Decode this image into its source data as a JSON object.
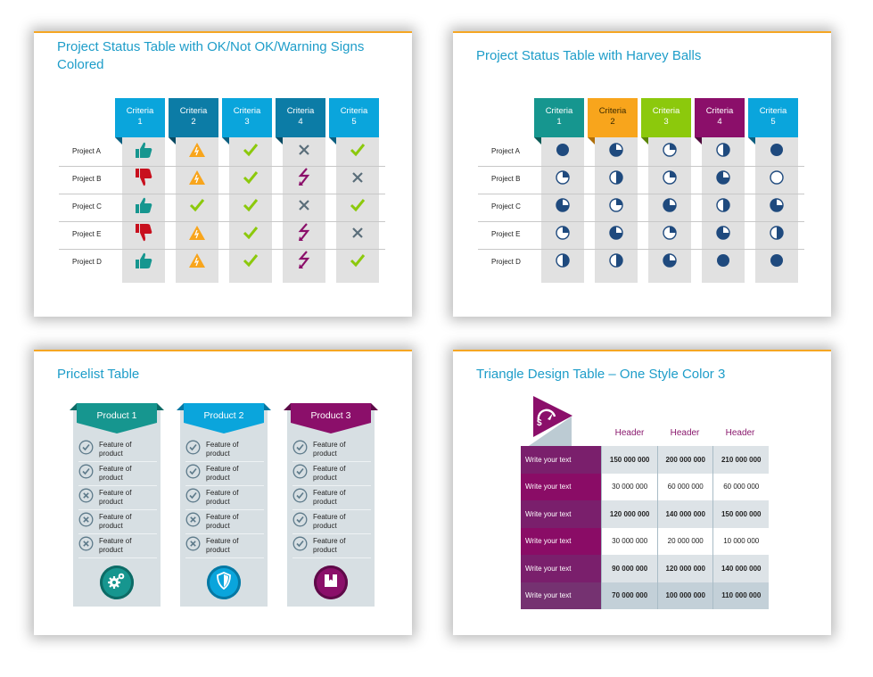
{
  "colors": {
    "accent_orange": "#f5a623",
    "title_blue": "#1e9dc9",
    "teal": "#16968f",
    "cyan": "#0aa5dc",
    "dark_cyan": "#0c7ca6",
    "green": "#8cc90c",
    "purple": "#8b0f6a",
    "orange": "#f8a51c",
    "red": "#c8101e",
    "gray_x": "#5a6e7a",
    "harvey_navy": "#1f4a7e"
  },
  "slides": [
    {
      "title": "Project Status Table with OK/Not OK/Warning Signs Colored",
      "columns": [
        {
          "label": "Criteria 1",
          "line1": "Criteria",
          "line2": "1",
          "color": "#0aa5dc",
          "fold": "#0c5f80"
        },
        {
          "label": "Criteria 2",
          "line1": "Criteria",
          "line2": "2",
          "color": "#0c7ca6",
          "fold": "#084a63"
        },
        {
          "label": "Criteria 3",
          "line1": "Criteria",
          "line2": "3",
          "color": "#0aa5dc",
          "fold": "#0c5f80"
        },
        {
          "label": "Criteria 4",
          "line1": "Criteria",
          "line2": "4",
          "color": "#0c7ca6",
          "fold": "#084a63"
        },
        {
          "label": "Criteria 5",
          "line1": "Criteria",
          "line2": "5",
          "color": "#0aa5dc",
          "fold": "#0c5f80"
        }
      ],
      "rows": [
        {
          "label": "Project A",
          "cells": [
            "thumbs-up",
            "warning",
            "check",
            "cross",
            "check"
          ]
        },
        {
          "label": "Project B",
          "cells": [
            "thumbs-down",
            "warning",
            "check",
            "lightning",
            "cross"
          ]
        },
        {
          "label": "Project C",
          "cells": [
            "thumbs-up",
            "check",
            "check",
            "cross",
            "check"
          ]
        },
        {
          "label": "Project E",
          "cells": [
            "thumbs-down",
            "warning",
            "check",
            "lightning",
            "cross"
          ]
        },
        {
          "label": "Project D",
          "cells": [
            "thumbs-up",
            "warning",
            "check",
            "lightning",
            "check"
          ]
        }
      ]
    },
    {
      "title": "Project Status Table with Harvey Balls",
      "columns": [
        {
          "label": "Criteria 1",
          "line1": "Criteria",
          "line2": "1",
          "color": "#16968f",
          "fold": "#0b5a56",
          "text": "#ffffff"
        },
        {
          "label": "Criteria 2",
          "line1": "Criteria",
          "line2": "2",
          "color": "#f8a51c",
          "fold": "#b06f08",
          "text": "#3a2a00"
        },
        {
          "label": "Criteria 3",
          "line1": "Criteria",
          "line2": "3",
          "color": "#8cc90c",
          "fold": "#5a8506",
          "text": "#ffffff"
        },
        {
          "label": "Criteria 4",
          "line1": "Criteria",
          "line2": "4",
          "color": "#8b0f6a",
          "fold": "#4e0a3c",
          "text": "#ffffff"
        },
        {
          "label": "Criteria 5",
          "line1": "Criteria",
          "line2": "5",
          "color": "#0aa5dc",
          "fold": "#0c5f80",
          "text": "#ffffff"
        }
      ],
      "harvey_scale": "quarters filled (0=empty, 4=full)",
      "rows": [
        {
          "label": "Project A",
          "cells": [
            4,
            3,
            1,
            2,
            4
          ]
        },
        {
          "label": "Project B",
          "cells": [
            1,
            2,
            1,
            3,
            0
          ]
        },
        {
          "label": "Project C",
          "cells": [
            3,
            1,
            3,
            2,
            3
          ]
        },
        {
          "label": "Project E",
          "cells": [
            1,
            3,
            1,
            3,
            2
          ]
        },
        {
          "label": "Project D",
          "cells": [
            2,
            2,
            3,
            4,
            4
          ]
        }
      ]
    },
    {
      "title": "Pricelist Table",
      "products": [
        {
          "name": "Product 1",
          "color": "#16968f",
          "dark": "#0d6b66",
          "icon": "gears-icon",
          "features": [
            {
              "text": "Feature of product",
              "status": "check"
            },
            {
              "text": "Feature of product",
              "status": "check"
            },
            {
              "text": "Feature of product",
              "status": "cross"
            },
            {
              "text": "Feature of product",
              "status": "cross"
            },
            {
              "text": "Feature of product",
              "status": "cross"
            }
          ]
        },
        {
          "name": "Product 2",
          "color": "#0aa5dc",
          "dark": "#0778a3",
          "icon": "shield-icon",
          "features": [
            {
              "text": "Feature of product",
              "status": "check"
            },
            {
              "text": "Feature of product",
              "status": "check"
            },
            {
              "text": "Feature of product",
              "status": "check"
            },
            {
              "text": "Feature of product",
              "status": "cross"
            },
            {
              "text": "Feature of product",
              "status": "cross"
            }
          ]
        },
        {
          "name": "Product 3",
          "color": "#8b0f6a",
          "dark": "#5e0a48",
          "icon": "bookmark-icon",
          "features": [
            {
              "text": "Feature of product",
              "status": "check"
            },
            {
              "text": "Feature of product",
              "status": "check"
            },
            {
              "text": "Feature of product",
              "status": "check"
            },
            {
              "text": "Feature of product",
              "status": "check"
            },
            {
              "text": "Feature of product",
              "status": "check"
            }
          ]
        }
      ]
    },
    {
      "title": "Triangle Design Table – One Style Color 3",
      "headers": [
        "Header",
        "Header",
        "Header"
      ],
      "rows": [
        {
          "label": "Write your text",
          "values": [
            "150 000 000",
            "200 000 000",
            "210 000 000"
          ],
          "bold": true,
          "label_bg": "#7a1f6c",
          "bg": "#dde3e7"
        },
        {
          "label": "Write your text",
          "values": [
            "30 000 000",
            "60 000 000",
            "60 000 000"
          ],
          "bold": false,
          "label_bg": "#8a0c66",
          "bg": "#ffffff"
        },
        {
          "label": "Write your text",
          "values": [
            "120 000 000",
            "140 000 000",
            "150 000 000"
          ],
          "bold": true,
          "label_bg": "#7a1f6c",
          "bg": "#dde3e7"
        },
        {
          "label": "Write your text",
          "values": [
            "30 000 000",
            "20 000 000",
            "10 000 000"
          ],
          "bold": false,
          "label_bg": "#8a0c66",
          "bg": "#ffffff"
        },
        {
          "label": "Write your text",
          "values": [
            "90 000 000",
            "120 000 000",
            "140 000 000"
          ],
          "bold": true,
          "label_bg": "#7a1f6c",
          "bg": "#dde3e7"
        },
        {
          "label": "Write your text",
          "values": [
            "70 000 000",
            "100 000 000",
            "110 000 000"
          ],
          "bold": true,
          "label_bg": "#753271",
          "bg": "#c3d0d8"
        }
      ],
      "corner_icon": "money-speedometer-icon"
    }
  ]
}
